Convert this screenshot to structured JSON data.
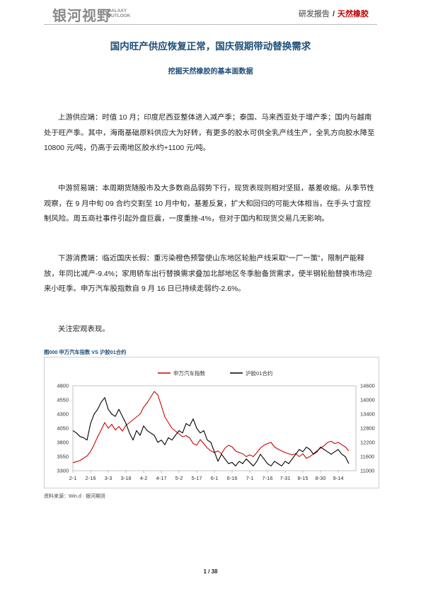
{
  "header": {
    "logo_cn": "银河视野",
    "logo_en_1": "GALAXY",
    "logo_en_2": "OUTLOOK",
    "section": "研发报告",
    "separator": "/",
    "topic": "天然橡胶"
  },
  "title": "国内旺产供应恢复正常，国庆假期带动替换需求",
  "subtitle": "挖掘天然橡胶的基本面数据",
  "paragraphs": [
    "上游供应端：时值 10 月；印度尼西亚整体进入减产季；泰国、马来西亚处于增产季；国内与越南处于旺产季。其中，海南基础原料供应大为好转，有更多的胶水可供全乳产线生产，全乳方向胶水降至 10800 元/吨，仍高于云南地区胶水约+1100 元/吨。",
    "中游贸易端：本周期货随股市及大多数商品弱势下行，现货表现则相对坚挺，基差收缩。从季节性观察，在 9 月中旬 09 合约交割至 10 月中旬，基差反复，扩大和回归的可能大体相当，在手头寸宜控制风险。周五商社事件引起外盘巨震，一度重挫-4%，但对于国内和现货交易几无影响。",
    "下游消费端：临近国庆长假：重污染橙色预警使山东地区轮胎产线采取“一厂一策”，限制产能释放，年同比减产-9.4%；家用轿车出行替换需求叠加北部地区冬季胎备货需求，使半钢轮胎替换市场迎来小旺季。申万汽车股指数自 9 月 16 日已持续走弱约-2.6%。",
    "关注宏观表现。"
  ],
  "figure": {
    "caption": "图000  申万汽车指数 VS 沪胶01合约",
    "source": "资料来源：Win.d · 银河期货"
  },
  "chart_data": {
    "type": "line",
    "series": [
      {
        "name": "申万汽车指数",
        "color": "#cc0000",
        "axis": "left",
        "x": [
          0,
          3,
          6,
          9,
          12,
          15,
          18,
          21,
          24,
          27,
          30,
          33,
          36,
          39,
          42,
          45,
          48,
          51,
          54,
          57,
          60,
          63,
          66,
          69,
          72,
          75,
          78,
          81,
          84,
          87,
          90,
          93,
          96,
          99,
          102,
          105,
          108,
          111,
          114,
          117,
          120,
          123,
          126,
          129,
          132,
          135,
          138,
          141,
          144,
          147,
          150,
          153,
          156,
          159,
          162,
          165,
          168,
          171,
          174,
          177,
          180,
          183,
          186,
          189,
          192,
          195,
          198,
          201,
          204,
          207,
          210,
          213,
          216,
          219,
          222,
          225,
          228,
          231,
          234
        ],
        "values": [
          3440,
          3460,
          3480,
          3520,
          3560,
          3640,
          3760,
          3900,
          4020,
          4150,
          4050,
          4120,
          4020,
          4080,
          4000,
          4100,
          4150,
          4200,
          4250,
          4300,
          4420,
          4500,
          4600,
          4700,
          4640,
          4450,
          4250,
          4150,
          4050,
          4000,
          3950,
          3900,
          3920,
          3880,
          3780,
          3750,
          3850,
          3780,
          3700,
          3650,
          3620,
          3650,
          3600,
          3700,
          3750,
          3720,
          3650,
          3620,
          3600,
          3550,
          3580,
          3550,
          3620,
          3700,
          3750,
          3780,
          3800,
          3720,
          3680,
          3650,
          3620,
          3600,
          3580,
          3600,
          3550,
          3600,
          3520,
          3550,
          3600,
          3650,
          3700,
          3740,
          3800,
          3820,
          3780,
          3800,
          3760,
          3720,
          3650
        ]
      },
      {
        "name": "沪胶01合约",
        "color": "#000000",
        "axis": "right",
        "x": [
          0,
          3,
          6,
          9,
          12,
          15,
          18,
          21,
          24,
          27,
          30,
          33,
          36,
          39,
          42,
          45,
          48,
          51,
          54,
          57,
          60,
          63,
          66,
          69,
          72,
          75,
          78,
          81,
          84,
          87,
          90,
          93,
          96,
          99,
          102,
          105,
          108,
          111,
          114,
          117,
          120,
          123,
          126,
          129,
          132,
          135,
          138,
          141,
          144,
          147,
          150,
          153,
          156,
          159,
          162,
          165,
          168,
          171,
          174,
          177,
          180,
          183,
          186,
          189,
          192,
          195,
          198,
          201,
          204,
          207,
          210,
          213,
          216,
          219,
          222,
          225,
          228,
          231,
          234
        ],
        "values": [
          12700,
          12600,
          12450,
          12400,
          12300,
          13000,
          13400,
          13600,
          13900,
          14100,
          13600,
          13400,
          13300,
          13600,
          13300,
          13000,
          12600,
          12300,
          12700,
          12500,
          12900,
          12700,
          12600,
          12500,
          12200,
          12300,
          12100,
          12400,
          12300,
          12500,
          12700,
          12600,
          13000,
          12900,
          13200,
          12800,
          12600,
          12700,
          12300,
          12200,
          11800,
          11400,
          11700,
          11500,
          11300,
          11350,
          11200,
          11400,
          11300,
          11500,
          11350,
          11200,
          11400,
          11700,
          11500,
          11300,
          11200,
          11400,
          11300,
          11200,
          11400,
          11300,
          11500,
          11700,
          11900,
          11800,
          12000,
          11900,
          11700,
          11800,
          12000,
          11900,
          11800,
          11700,
          11800,
          11900,
          11700,
          11600,
          11300
        ]
      }
    ],
    "x_ticks": [
      "2-1",
      "2-16",
      "3-3",
      "3-18",
      "4-2",
      "4-17",
      "5-2",
      "5-17",
      "6-1",
      "6-16",
      "7-1",
      "7-16",
      "7-31",
      "8-15",
      "8-30",
      "9-14"
    ],
    "x_tick_pos": [
      0,
      15,
      30,
      45,
      60,
      75,
      90,
      105,
      120,
      135,
      150,
      165,
      180,
      195,
      210,
      225
    ],
    "xlim": [
      0,
      240
    ],
    "y_left_ticks": [
      "4800",
      "4550",
      "4300",
      "4050",
      "3800",
      "3550",
      "3300"
    ],
    "ylim_left": [
      3300,
      4800
    ],
    "y_right_ticks": [
      "14600",
      "14000",
      "13400",
      "12800",
      "12200",
      "11600",
      "11000"
    ],
    "ylim_right": [
      11000,
      14600
    ],
    "grid": false,
    "legend_position": "top"
  },
  "page": {
    "number": "1 / 38"
  }
}
